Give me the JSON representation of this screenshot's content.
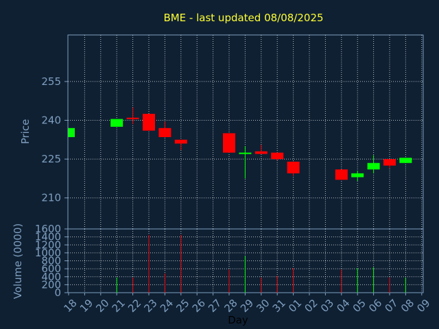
{
  "chart_data": {
    "type": "candlestick",
    "title": "BME - last updated 08/08/2025",
    "xlabel": "Day",
    "price_panel": {
      "ylabel": "Price",
      "ylim": [
        198,
        273
      ],
      "yticks": [
        210,
        225,
        240,
        255
      ]
    },
    "volume_panel": {
      "ylabel": "Volume (0000)",
      "ylim": [
        0,
        1600
      ],
      "yticks": [
        0,
        200,
        400,
        600,
        800,
        1000,
        1200,
        1400,
        1600
      ]
    },
    "x_ticks": [
      "18",
      "19",
      "20",
      "21",
      "22",
      "23",
      "24",
      "25",
      "26",
      "27",
      "28",
      "29",
      "30",
      "31",
      "01",
      "02",
      "03",
      "04",
      "05",
      "06",
      "07",
      "08",
      "09"
    ],
    "candles": [
      {
        "x": "18",
        "open": 233.5,
        "close": 237.0,
        "high": 237.0,
        "low": 233.5,
        "volume": 0
      },
      {
        "x": "21",
        "open": 237.5,
        "close": 240.5,
        "high": 240.5,
        "low": 237.5,
        "volume": 380
      },
      {
        "x": "22",
        "open": 241.0,
        "close": 240.5,
        "high": 245.0,
        "low": 238.5,
        "volume": 380
      },
      {
        "x": "23",
        "open": 242.5,
        "close": 236.0,
        "high": 242.5,
        "low": 236.0,
        "volume": 1450
      },
      {
        "x": "24",
        "open": 237.0,
        "close": 233.5,
        "high": 239.5,
        "low": 233.5,
        "volume": 480
      },
      {
        "x": "25",
        "open": 232.5,
        "close": 231.0,
        "high": 232.5,
        "low": 228.5,
        "volume": 1450
      },
      {
        "x": "28",
        "open": 235.0,
        "close": 227.5,
        "high": 235.0,
        "low": 227.5,
        "volume": 580
      },
      {
        "x": "29",
        "open": 227.0,
        "close": 227.5,
        "high": 230.0,
        "low": 217.5,
        "volume": 920
      },
      {
        "x": "30",
        "open": 228.0,
        "close": 227.0,
        "high": 230.5,
        "low": 227.0,
        "volume": 380
      },
      {
        "x": "31",
        "open": 227.5,
        "close": 225.0,
        "high": 227.5,
        "low": 224.5,
        "volume": 420
      },
      {
        "x": "01",
        "open": 224.0,
        "close": 219.5,
        "high": 224.0,
        "low": 218.5,
        "volume": 620
      },
      {
        "x": "04",
        "open": 221.0,
        "close": 217.0,
        "high": 221.0,
        "low": 217.0,
        "volume": 580
      },
      {
        "x": "05",
        "open": 218.0,
        "close": 219.5,
        "high": 220.5,
        "low": 216.5,
        "volume": 620
      },
      {
        "x": "06",
        "open": 221.0,
        "close": 223.5,
        "high": 226.5,
        "low": 219.5,
        "volume": 640
      },
      {
        "x": "07",
        "open": 225.0,
        "close": 222.5,
        "high": 225.0,
        "low": 221.5,
        "volume": 380
      },
      {
        "x": "08",
        "open": 223.5,
        "close": 225.5,
        "high": 225.5,
        "low": 223.5,
        "volume": 380
      }
    ],
    "colors": {
      "up": "#00ff00",
      "down": "#ff0000",
      "background": "#0f2033",
      "axis": "#7f9fbf",
      "grid": "#ffffff",
      "title": "#ffff33"
    },
    "grid": true
  }
}
